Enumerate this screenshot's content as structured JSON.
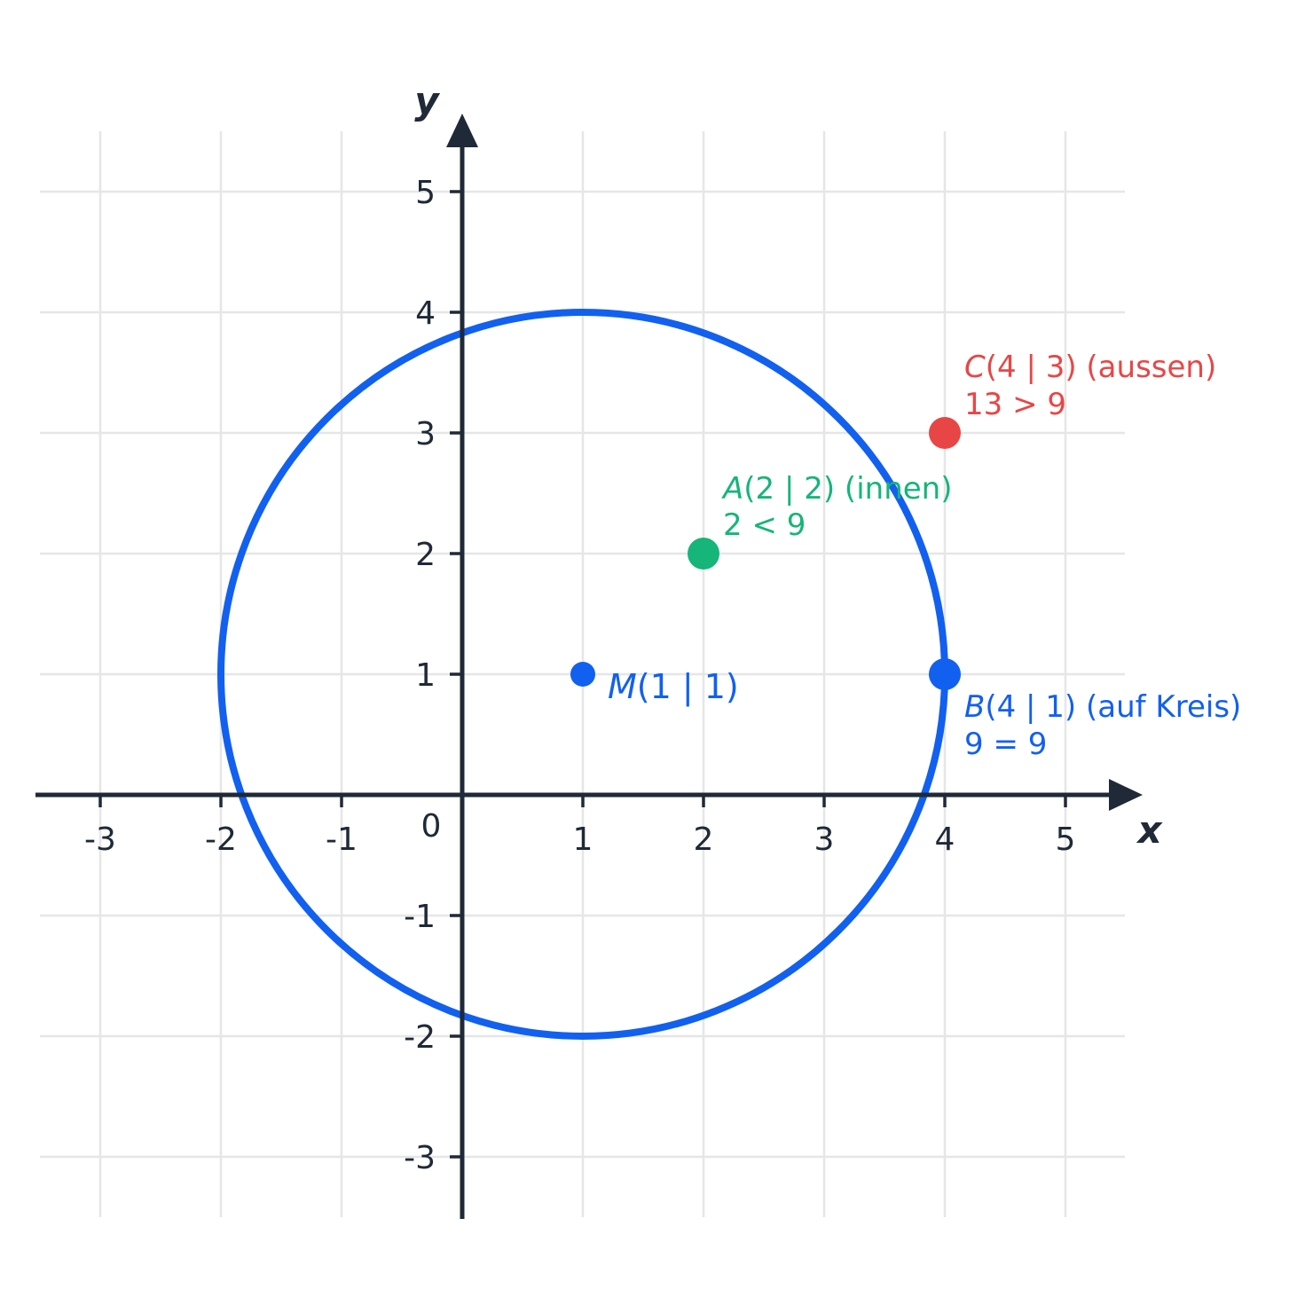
{
  "axes": {
    "x_name": "x",
    "y_name": "y",
    "origin_label": "0",
    "x_ticks": [
      "-3",
      "-2",
      "-1",
      "1",
      "2",
      "3",
      "4",
      "5"
    ],
    "y_ticks": [
      "5",
      "4",
      "3",
      "2",
      "1",
      "-1",
      "-2",
      "-3"
    ],
    "x_range": [
      -3.5,
      5.5
    ],
    "y_range": [
      -3.5,
      5.5
    ]
  },
  "circle": {
    "center": [
      1,
      1
    ],
    "radius": 3,
    "color": "#1260f0"
  },
  "points": {
    "M": {
      "x": 1,
      "y": 1,
      "color": "#1260f0",
      "name": "M",
      "coords": "(1 | 1)"
    },
    "A": {
      "x": 2,
      "y": 2,
      "color": "#16b57a",
      "name": "A",
      "coords": "(2 | 2) (innen)",
      "relation": "2 < 9"
    },
    "B": {
      "x": 4,
      "y": 1,
      "color": "#1260f0",
      "name": "B",
      "coords": "(4 | 1) (auf Kreis)",
      "relation": "9 = 9"
    },
    "C": {
      "x": 4,
      "y": 3,
      "color": "#e84646",
      "name": "C",
      "coords": "(4 | 3) (aussen)",
      "relation": "13 > 9"
    }
  }
}
